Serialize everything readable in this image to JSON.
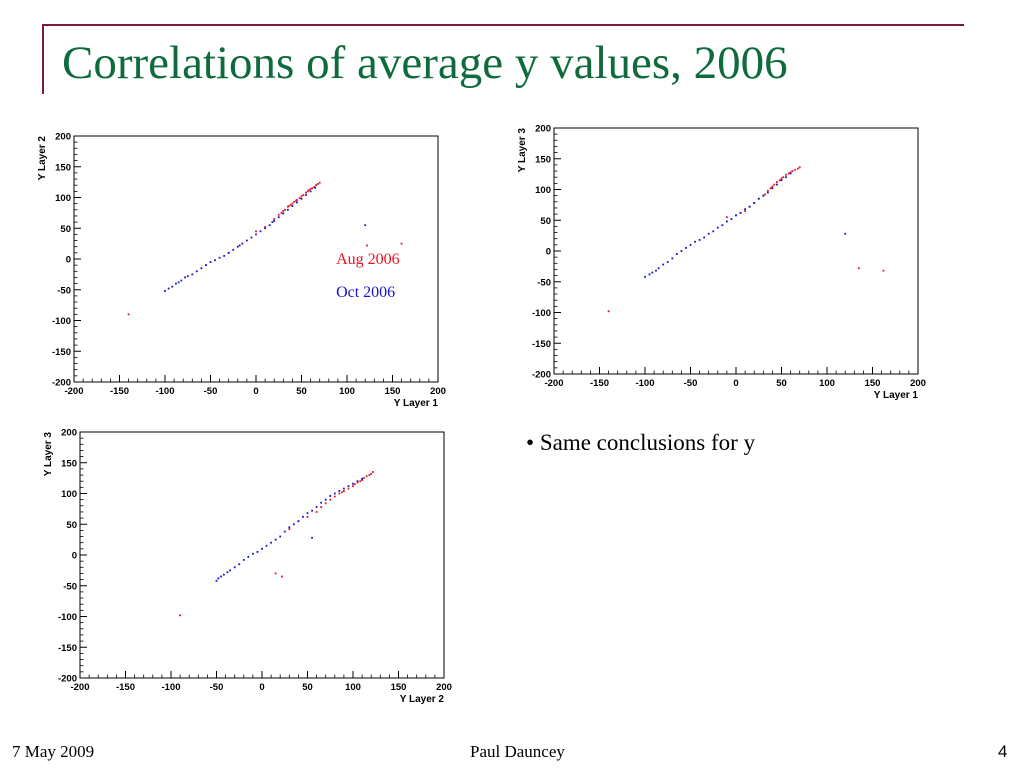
{
  "slide": {
    "title": "Correlations of average y values, 2006",
    "bullet_symbol": "•",
    "bullet_text": "Same conclusions for y",
    "footer_date": "7 May 2009",
    "footer_author": "Paul Dauncey",
    "page_number": "4"
  },
  "colors": {
    "title": "#0f6b3c",
    "rule": "#7a1d3a",
    "aug": "#e8141e",
    "oct": "#1414d2"
  },
  "legend": {
    "aug": "Aug 2006",
    "oct": "Oct 2006"
  },
  "chart_data": [
    {
      "type": "scatter",
      "xlabel": "Y Layer 1",
      "ylabel": "Y Layer 2",
      "xlim": [
        -200,
        200
      ],
      "ylim": [
        -200,
        200
      ],
      "xticks": [
        "-200",
        "-150",
        "-100",
        "-50",
        "0",
        "50",
        "100",
        "150",
        "200"
      ],
      "yticks": [
        "-200",
        "-150",
        "-100",
        "-50",
        "0",
        "50",
        "100",
        "150",
        "200"
      ],
      "legend_labels": true,
      "series": [
        {
          "name": "Aug 2006",
          "color": "#e8141e",
          "points": [
            [
              -140,
              -90
            ],
            [
              -55,
              -10
            ],
            [
              -30,
              10
            ],
            [
              0,
              45
            ],
            [
              10,
              52
            ],
            [
              20,
              65
            ],
            [
              25,
              72
            ],
            [
              28,
              75
            ],
            [
              30,
              78
            ],
            [
              32,
              80
            ],
            [
              35,
              85
            ],
            [
              36,
              86
            ],
            [
              38,
              88
            ],
            [
              40,
              90
            ],
            [
              42,
              93
            ],
            [
              44,
              95
            ],
            [
              45,
              96
            ],
            [
              48,
              99
            ],
            [
              50,
              102
            ],
            [
              52,
              104
            ],
            [
              55,
              108
            ],
            [
              57,
              110
            ],
            [
              58,
              112
            ],
            [
              60,
              114
            ],
            [
              62,
              115
            ],
            [
              64,
              117
            ],
            [
              66,
              120
            ],
            [
              68,
              122
            ],
            [
              70,
              124
            ],
            [
              122,
              22
            ],
            [
              160,
              25
            ]
          ]
        },
        {
          "name": "Oct 2006",
          "color": "#1414d2",
          "points": [
            [
              -100,
              -52
            ],
            [
              -96,
              -48
            ],
            [
              -92,
              -45
            ],
            [
              -88,
              -40
            ],
            [
              -85,
              -38
            ],
            [
              -82,
              -35
            ],
            [
              -78,
              -30
            ],
            [
              -75,
              -28
            ],
            [
              -70,
              -25
            ],
            [
              -65,
              -20
            ],
            [
              -60,
              -15
            ],
            [
              -55,
              -10
            ],
            [
              -50,
              -5
            ],
            [
              -45,
              -2
            ],
            [
              -40,
              2
            ],
            [
              -35,
              5
            ],
            [
              -30,
              10
            ],
            [
              -25,
              15
            ],
            [
              -20,
              20
            ],
            [
              -18,
              22
            ],
            [
              -15,
              25
            ],
            [
              -10,
              30
            ],
            [
              -5,
              35
            ],
            [
              0,
              40
            ],
            [
              5,
              45
            ],
            [
              10,
              50
            ],
            [
              15,
              55
            ],
            [
              18,
              60
            ],
            [
              20,
              62
            ],
            [
              25,
              68
            ],
            [
              30,
              74
            ],
            [
              35,
              80
            ],
            [
              40,
              86
            ],
            [
              45,
              92
            ],
            [
              50,
              98
            ],
            [
              55,
              104
            ],
            [
              60,
              110
            ],
            [
              65,
              116
            ],
            [
              120,
              55
            ]
          ]
        }
      ]
    },
    {
      "type": "scatter",
      "xlabel": "Y Layer 1",
      "ylabel": "Y Layer 3",
      "xlim": [
        -200,
        200
      ],
      "ylim": [
        -200,
        200
      ],
      "xticks": [
        "-200",
        "-150",
        "-100",
        "-50",
        "0",
        "50",
        "100",
        "150",
        "200"
      ],
      "yticks": [
        "-200",
        "-150",
        "-100",
        "-50",
        "0",
        "50",
        "100",
        "150",
        "200"
      ],
      "legend_labels": false,
      "series": [
        {
          "name": "Aug 2006",
          "color": "#e8141e",
          "points": [
            [
              -140,
              -98
            ],
            [
              -10,
              55
            ],
            [
              0,
              58
            ],
            [
              5,
              62
            ],
            [
              10,
              65
            ],
            [
              15,
              72
            ],
            [
              20,
              78
            ],
            [
              25,
              85
            ],
            [
              30,
              90
            ],
            [
              32,
              92
            ],
            [
              35,
              98
            ],
            [
              38,
              102
            ],
            [
              40,
              105
            ],
            [
              42,
              108
            ],
            [
              45,
              112
            ],
            [
              48,
              115
            ],
            [
              50,
              118
            ],
            [
              52,
              120
            ],
            [
              55,
              124
            ],
            [
              58,
              126
            ],
            [
              60,
              128
            ],
            [
              62,
              130
            ],
            [
              65,
              132
            ],
            [
              68,
              134
            ],
            [
              70,
              136
            ],
            [
              135,
              -28
            ],
            [
              162,
              -32
            ]
          ]
        },
        {
          "name": "Oct 2006",
          "color": "#1414d2",
          "points": [
            [
              -100,
              -42
            ],
            [
              -95,
              -38
            ],
            [
              -92,
              -35
            ],
            [
              -88,
              -32
            ],
            [
              -85,
              -28
            ],
            [
              -80,
              -22
            ],
            [
              -75,
              -18
            ],
            [
              -70,
              -12
            ],
            [
              -65,
              -5
            ],
            [
              -60,
              0
            ],
            [
              -55,
              5
            ],
            [
              -50,
              10
            ],
            [
              -45,
              15
            ],
            [
              -40,
              18
            ],
            [
              -35,
              22
            ],
            [
              -30,
              28
            ],
            [
              -25,
              32
            ],
            [
              -20,
              38
            ],
            [
              -15,
              42
            ],
            [
              -10,
              48
            ],
            [
              -5,
              52
            ],
            [
              0,
              58
            ],
            [
              5,
              62
            ],
            [
              10,
              68
            ],
            [
              15,
              72
            ],
            [
              20,
              78
            ],
            [
              25,
              85
            ],
            [
              30,
              90
            ],
            [
              35,
              95
            ],
            [
              40,
              102
            ],
            [
              45,
              108
            ],
            [
              50,
              115
            ],
            [
              55,
              120
            ],
            [
              60,
              126
            ],
            [
              120,
              28
            ]
          ]
        }
      ]
    },
    {
      "type": "scatter",
      "xlabel": "Y Layer 2",
      "ylabel": "Y Layer 3",
      "xlim": [
        -200,
        200
      ],
      "ylim": [
        -200,
        200
      ],
      "xticks": [
        "-200",
        "-150",
        "-100",
        "-50",
        "0",
        "50",
        "100",
        "150",
        "200"
      ],
      "yticks": [
        "-200",
        "-150",
        "-100",
        "-50",
        "0",
        "50",
        "100",
        "150",
        "200"
      ],
      "legend_labels": false,
      "series": [
        {
          "name": "Aug 2006",
          "color": "#e8141e",
          "points": [
            [
              -90,
              -98
            ],
            [
              15,
              -30
            ],
            [
              22,
              -35
            ],
            [
              30,
              42
            ],
            [
              40,
              55
            ],
            [
              50,
              62
            ],
            [
              60,
              70
            ],
            [
              65,
              78
            ],
            [
              70,
              84
            ],
            [
              75,
              90
            ],
            [
              80,
              95
            ],
            [
              85,
              100
            ],
            [
              88,
              102
            ],
            [
              90,
              104
            ],
            [
              95,
              108
            ],
            [
              100,
              112
            ],
            [
              102,
              115
            ],
            [
              105,
              118
            ],
            [
              108,
              120
            ],
            [
              110,
              122
            ],
            [
              112,
              125
            ],
            [
              115,
              128
            ],
            [
              118,
              130
            ],
            [
              120,
              132
            ],
            [
              122,
              135
            ]
          ]
        },
        {
          "name": "Oct 2006",
          "color": "#1414d2",
          "points": [
            [
              -50,
              -42
            ],
            [
              -48,
              -38
            ],
            [
              -45,
              -35
            ],
            [
              -42,
              -32
            ],
            [
              -38,
              -28
            ],
            [
              -35,
              -25
            ],
            [
              -30,
              -20
            ],
            [
              -25,
              -15
            ],
            [
              -20,
              -8
            ],
            [
              -15,
              -3
            ],
            [
              -10,
              2
            ],
            [
              -5,
              5
            ],
            [
              0,
              10
            ],
            [
              5,
              15
            ],
            [
              10,
              20
            ],
            [
              15,
              25
            ],
            [
              20,
              30
            ],
            [
              25,
              38
            ],
            [
              30,
              45
            ],
            [
              35,
              50
            ],
            [
              40,
              55
            ],
            [
              45,
              62
            ],
            [
              50,
              68
            ],
            [
              55,
              72
            ],
            [
              60,
              78
            ],
            [
              65,
              85
            ],
            [
              70,
              90
            ],
            [
              75,
              96
            ],
            [
              80,
              100
            ],
            [
              85,
              104
            ],
            [
              90,
              108
            ],
            [
              95,
              112
            ],
            [
              100,
              116
            ],
            [
              105,
              120
            ],
            [
              110,
              124
            ],
            [
              55,
              28
            ]
          ]
        }
      ]
    }
  ]
}
